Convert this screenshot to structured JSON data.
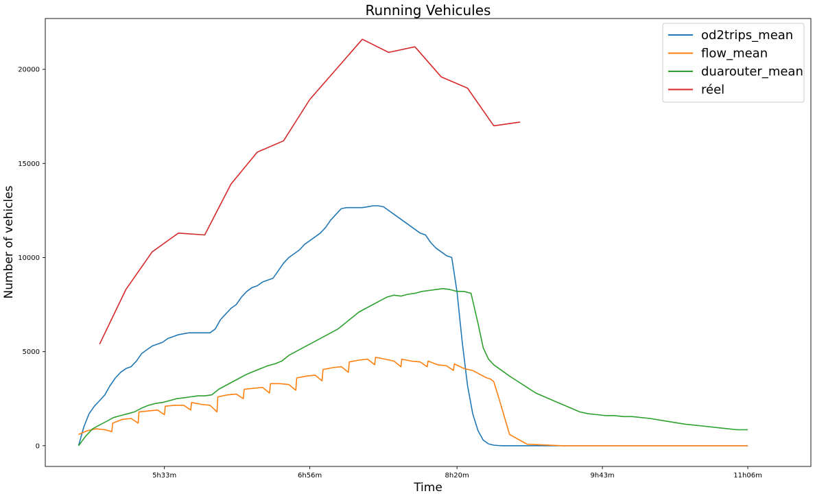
{
  "chart_data": {
    "type": "line",
    "title": "Running Vehicules",
    "xlabel": "Time",
    "ylabel": "Number of vehicles",
    "x_unit": "minutes",
    "xlim": [
      265,
      702
    ],
    "ylim": [
      -1100,
      22700
    ],
    "x_ticks": [
      {
        "value": 333,
        "label": "5h33m"
      },
      {
        "value": 416,
        "label": "6h56m"
      },
      {
        "value": 500,
        "label": "8h20m"
      },
      {
        "value": 583,
        "label": "9h43m"
      },
      {
        "value": 666,
        "label": "11h06m"
      }
    ],
    "y_ticks": [
      {
        "value": 0,
        "label": "0"
      },
      {
        "value": 5000,
        "label": "5000"
      },
      {
        "value": 10000,
        "label": "10000"
      },
      {
        "value": 15000,
        "label": "15000"
      },
      {
        "value": 20000,
        "label": "20000"
      }
    ],
    "grid": false,
    "legend_position": "top-right",
    "series": [
      {
        "name": "od2trips_mean",
        "color": "#1f77b4",
        "x": [
          284,
          287,
          290,
          293,
          296,
          299,
          302,
          305,
          308,
          311,
          314,
          317,
          320,
          323,
          326,
          329,
          332,
          335,
          338,
          341,
          344,
          347,
          350,
          353,
          356,
          359,
          362,
          365,
          368,
          371,
          374,
          377,
          380,
          383,
          386,
          389,
          392,
          395,
          398,
          401,
          404,
          407,
          410,
          413,
          416,
          419,
          422,
          425,
          428,
          431,
          434,
          437,
          440,
          443,
          446,
          449,
          452,
          455,
          458,
          461,
          464,
          467,
          470,
          473,
          476,
          479,
          482,
          485,
          488,
          491,
          494,
          497,
          500,
          503,
          506,
          509,
          512,
          515,
          518,
          521,
          523.5,
          526,
          529,
          532,
          535,
          538,
          541,
          544,
          547,
          550,
          553,
          556,
          559,
          562,
          565,
          568,
          571,
          574,
          577,
          580,
          585,
          590,
          600,
          620,
          640,
          666
        ],
        "y": [
          0,
          1000,
          1700,
          2100,
          2400,
          2700,
          3200,
          3600,
          3900,
          4100,
          4200,
          4500,
          4900,
          5100,
          5300,
          5400,
          5500,
          5700,
          5800,
          5900,
          5950,
          6000,
          6000,
          6000,
          6000,
          6000,
          6200,
          6700,
          7000,
          7300,
          7500,
          7900,
          8200,
          8400,
          8500,
          8700,
          8800,
          8900,
          9300,
          9700,
          10000,
          10200,
          10400,
          10700,
          10900,
          11100,
          11300,
          11600,
          12000,
          12300,
          12600,
          12650,
          12650,
          12650,
          12650,
          12700,
          12750,
          12750,
          12700,
          12500,
          12300,
          12100,
          11900,
          11700,
          11500,
          11300,
          11200,
          10800,
          10500,
          10300,
          10100,
          10000,
          8200,
          5500,
          3200,
          1700,
          800,
          300,
          100,
          30,
          10,
          0,
          0,
          0,
          0,
          0,
          0,
          0,
          0,
          0,
          0,
          0,
          0,
          0,
          0,
          0,
          0,
          0,
          0,
          0,
          0,
          0,
          0,
          0,
          0,
          0
        ]
      },
      {
        "name": "flow_mean",
        "color": "#ff7f0e",
        "x": [
          284,
          289,
          294,
          299,
          303,
          303.5,
          309,
          314,
          318,
          318.5,
          324,
          329,
          333,
          333.5,
          339,
          344,
          348,
          348.5,
          354,
          359,
          363,
          363.5,
          369,
          374,
          378,
          378.5,
          384,
          389,
          393,
          393.5,
          399,
          404,
          408,
          408.5,
          414,
          419,
          423,
          423.5,
          429,
          434,
          438,
          438.5,
          444,
          449,
          453,
          453.5,
          459,
          464,
          468,
          468.5,
          474,
          479,
          483,
          483.5,
          489,
          494,
          498,
          498.5,
          504,
          509,
          513,
          515,
          517,
          519,
          521,
          524,
          530,
          540,
          560,
          600,
          640,
          666
        ],
        "y": [
          600,
          800,
          900,
          850,
          750,
          1200,
          1400,
          1450,
          1200,
          1800,
          1850,
          1900,
          1650,
          2100,
          2150,
          2150,
          1900,
          2300,
          2200,
          2150,
          1800,
          2600,
          2700,
          2750,
          2500,
          3000,
          3050,
          3100,
          2800,
          3300,
          3300,
          3250,
          2950,
          3600,
          3700,
          3750,
          3450,
          4050,
          4150,
          4200,
          3900,
          4450,
          4550,
          4600,
          4300,
          4700,
          4600,
          4500,
          4200,
          4600,
          4500,
          4450,
          4200,
          4500,
          4300,
          4250,
          4000,
          4350,
          4100,
          4000,
          3800,
          3700,
          3600,
          3550,
          3400,
          2500,
          600,
          80,
          0,
          0,
          0,
          0
        ]
      },
      {
        "name": "duarouter_mean",
        "color": "#2ca02c",
        "x": [
          284,
          288,
          292,
          296,
          300,
          304,
          308,
          312,
          316,
          320,
          324,
          328,
          332,
          336,
          340,
          344,
          348,
          352,
          356,
          360,
          364,
          368,
          372,
          376,
          380,
          384,
          388,
          392,
          396,
          400,
          404,
          408,
          412,
          416,
          420,
          424,
          428,
          432,
          436,
          440,
          444,
          448,
          452,
          456,
          460,
          464,
          468,
          472,
          476,
          480,
          484,
          488,
          492,
          496,
          500,
          504,
          508,
          512,
          515,
          518,
          521,
          524,
          527,
          530,
          535,
          540,
          545,
          550,
          555,
          560,
          565,
          570,
          575,
          580,
          585,
          590,
          595,
          600,
          610,
          620,
          630,
          640,
          650,
          660,
          666
        ],
        "y": [
          0,
          500,
          900,
          1100,
          1300,
          1500,
          1600,
          1700,
          1800,
          2000,
          2150,
          2250,
          2300,
          2400,
          2500,
          2550,
          2600,
          2650,
          2650,
          2700,
          3000,
          3200,
          3400,
          3600,
          3800,
          3950,
          4100,
          4250,
          4350,
          4500,
          4800,
          5000,
          5200,
          5400,
          5600,
          5800,
          6000,
          6200,
          6500,
          6800,
          7100,
          7300,
          7500,
          7700,
          7900,
          8000,
          7950,
          8050,
          8100,
          8200,
          8250,
          8300,
          8350,
          8300,
          8200,
          8200,
          8100,
          6500,
          5200,
          4600,
          4300,
          4100,
          3900,
          3700,
          3400,
          3100,
          2800,
          2600,
          2400,
          2200,
          2000,
          1800,
          1700,
          1650,
          1600,
          1600,
          1550,
          1550,
          1450,
          1300,
          1150,
          1050,
          950,
          850,
          850
        ]
      },
      {
        "name": "réel",
        "color": "#d62728",
        "x": [
          296,
          311,
          326,
          341,
          356,
          371,
          386,
          401,
          416,
          431,
          446,
          461,
          476,
          491,
          506,
          521,
          536
        ],
        "y": [
          5400,
          8300,
          10300,
          11300,
          11200,
          13900,
          15600,
          16200,
          18400,
          20000,
          21600,
          20900,
          21200,
          19600,
          19000,
          17000,
          17200
        ]
      }
    ]
  }
}
